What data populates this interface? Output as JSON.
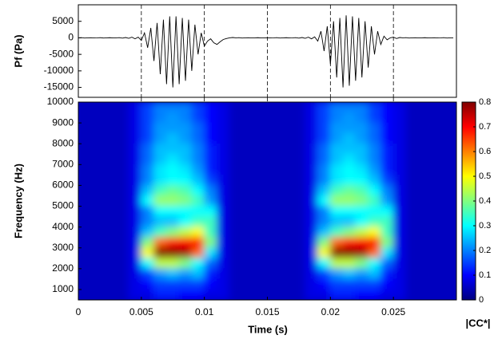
{
  "chart_data": [
    {
      "type": "line",
      "ylabel": "Pf (Pa)",
      "color": "#000000",
      "x": [
        0,
        0.00025,
        0.0005,
        0.00075,
        0.001,
        0.00125,
        0.0015,
        0.00175,
        0.002,
        0.00225,
        0.0025,
        0.00275,
        0.003,
        0.00325,
        0.0035,
        0.00375,
        0.004,
        0.00425,
        0.0045,
        0.00475,
        0.005,
        0.00525,
        0.0055,
        0.00575,
        0.006,
        0.00625,
        0.0065,
        0.00675,
        0.007,
        0.00725,
        0.0075,
        0.00775,
        0.008,
        0.00825,
        0.0085,
        0.00875,
        0.009,
        0.00925,
        0.0095,
        0.00975,
        0.01,
        0.01025,
        0.0105,
        0.01075,
        0.011,
        0.01125,
        0.0115,
        0.01175,
        0.012,
        0.01225,
        0.0125,
        0.01275,
        0.013,
        0.01325,
        0.0135,
        0.01375,
        0.014,
        0.01425,
        0.0145,
        0.01475,
        0.015,
        0.01525,
        0.0155,
        0.01575,
        0.016,
        0.01625,
        0.0165,
        0.01675,
        0.017,
        0.01725,
        0.0175,
        0.01775,
        0.018,
        0.01825,
        0.0185,
        0.01875,
        0.019,
        0.01925,
        0.0195,
        0.01975,
        0.02,
        0.02025,
        0.0205,
        0.02075,
        0.021,
        0.02125,
        0.0215,
        0.02175,
        0.022,
        0.02225,
        0.0225,
        0.02275,
        0.023,
        0.02325,
        0.0235,
        0.02375,
        0.024,
        0.02425,
        0.0245,
        0.02475,
        0.025,
        0.02525,
        0.0255,
        0.02575,
        0.026,
        0.02625,
        0.0265,
        0.02675,
        0.027,
        0.02725,
        0.0275,
        0.02775,
        0.028,
        0.02825,
        0.0285,
        0.02875,
        0.029,
        0.02925,
        0.0295,
        0.02975
      ],
      "values": [
        0,
        50,
        -50,
        0,
        30,
        -40,
        0,
        60,
        -60,
        0,
        40,
        -40,
        0,
        50,
        -80,
        100,
        -150,
        200,
        -300,
        200,
        -800,
        1500,
        -3000,
        3000,
        -7000,
        4500,
        -11000,
        5500,
        -14000,
        6500,
        -15000,
        6500,
        -14000,
        6000,
        -13000,
        5500,
        -10000,
        4000,
        -5000,
        1500,
        -2500,
        -1000,
        -300,
        -1500,
        -2000,
        -1200,
        -500,
        -200,
        0,
        100,
        0,
        50,
        -50,
        0,
        30,
        -30,
        0,
        40,
        -40,
        0,
        30,
        -30,
        0,
        50,
        -50,
        0,
        40,
        -40,
        0,
        60,
        -80,
        100,
        -150,
        200,
        -300,
        300,
        -1000,
        2000,
        -4000,
        3500,
        -8000,
        5000,
        -12000,
        6000,
        -15000,
        6800,
        -14500,
        6500,
        -13000,
        6000,
        -12000,
        5000,
        -9000,
        3500,
        -5000,
        2000,
        -2000,
        500,
        -600,
        0,
        200,
        -200,
        100,
        0,
        50,
        -50,
        0,
        30,
        -30,
        0,
        40,
        -40,
        0,
        30,
        -30,
        0,
        50,
        -50,
        0,
        0
      ],
      "xlim": [
        0,
        0.03
      ],
      "ylim": [
        -18000,
        10000
      ],
      "xticks": [
        0.005,
        0.01,
        0.015,
        0.02,
        0.025
      ],
      "yticks": [
        5000,
        0,
        -5000,
        -10000,
        -15000
      ],
      "grid": "dashed"
    },
    {
      "type": "heatmap",
      "xlabel": "Time (s)",
      "ylabel": "Frequency (Hz)",
      "colormap": "jet",
      "xlim": [
        0,
        0.03
      ],
      "ylim": [
        500,
        10000
      ],
      "xticks": [
        0,
        0.005,
        0.01,
        0.015,
        0.02,
        0.025
      ],
      "yticks": [
        1000,
        2000,
        3000,
        4000,
        5000,
        6000,
        7000,
        8000,
        9000,
        10000
      ],
      "x": [
        0.0005,
        0.0015,
        0.0025,
        0.0035,
        0.0045,
        0.0055,
        0.0065,
        0.0075,
        0.0085,
        0.0095,
        0.0105,
        0.0115,
        0.0125,
        0.0135,
        0.0145,
        0.0155,
        0.0165,
        0.0175,
        0.0185,
        0.0195,
        0.0205,
        0.0215,
        0.0225,
        0.0235,
        0.0245,
        0.0255,
        0.0265,
        0.0275,
        0.0285,
        0.0295
      ],
      "y": [
        9750,
        9250,
        8750,
        8250,
        7750,
        7250,
        6750,
        6250,
        5750,
        5250,
        4750,
        4250,
        3750,
        3250,
        2750,
        2250,
        1750,
        1250,
        750
      ],
      "z": [
        [
          0.05,
          0.05,
          0.05,
          0.05,
          0.08,
          0.15,
          0.2,
          0.2,
          0.2,
          0.15,
          0.1,
          0.08,
          0.05,
          0.05,
          0.05,
          0.05,
          0.05,
          0.05,
          0.08,
          0.15,
          0.2,
          0.2,
          0.2,
          0.15,
          0.1,
          0.08,
          0.05,
          0.05,
          0.05,
          0.05
        ],
        [
          0.05,
          0.05,
          0.05,
          0.05,
          0.08,
          0.15,
          0.2,
          0.22,
          0.2,
          0.15,
          0.1,
          0.08,
          0.05,
          0.05,
          0.05,
          0.05,
          0.05,
          0.05,
          0.08,
          0.15,
          0.2,
          0.22,
          0.2,
          0.15,
          0.1,
          0.08,
          0.05,
          0.05,
          0.05,
          0.05
        ],
        [
          0.05,
          0.05,
          0.05,
          0.05,
          0.08,
          0.15,
          0.22,
          0.22,
          0.22,
          0.18,
          0.1,
          0.08,
          0.05,
          0.05,
          0.05,
          0.05,
          0.05,
          0.05,
          0.08,
          0.15,
          0.22,
          0.22,
          0.22,
          0.18,
          0.1,
          0.08,
          0.05,
          0.05,
          0.05,
          0.05
        ],
        [
          0.05,
          0.05,
          0.05,
          0.05,
          0.08,
          0.15,
          0.22,
          0.25,
          0.22,
          0.18,
          0.1,
          0.08,
          0.05,
          0.05,
          0.05,
          0.05,
          0.05,
          0.05,
          0.08,
          0.15,
          0.22,
          0.25,
          0.22,
          0.18,
          0.1,
          0.08,
          0.05,
          0.05,
          0.05,
          0.05
        ],
        [
          0.05,
          0.05,
          0.05,
          0.05,
          0.08,
          0.18,
          0.25,
          0.25,
          0.25,
          0.2,
          0.12,
          0.08,
          0.05,
          0.05,
          0.05,
          0.05,
          0.05,
          0.05,
          0.08,
          0.18,
          0.25,
          0.25,
          0.25,
          0.2,
          0.12,
          0.08,
          0.05,
          0.05,
          0.05,
          0.05
        ],
        [
          0.05,
          0.05,
          0.05,
          0.05,
          0.08,
          0.18,
          0.25,
          0.28,
          0.25,
          0.2,
          0.12,
          0.08,
          0.05,
          0.05,
          0.05,
          0.05,
          0.05,
          0.05,
          0.08,
          0.18,
          0.25,
          0.28,
          0.25,
          0.2,
          0.12,
          0.08,
          0.05,
          0.05,
          0.05,
          0.05
        ],
        [
          0.05,
          0.05,
          0.05,
          0.05,
          0.08,
          0.2,
          0.28,
          0.3,
          0.28,
          0.22,
          0.12,
          0.08,
          0.05,
          0.05,
          0.05,
          0.05,
          0.05,
          0.05,
          0.08,
          0.2,
          0.28,
          0.3,
          0.28,
          0.22,
          0.12,
          0.08,
          0.05,
          0.05,
          0.05,
          0.05
        ],
        [
          0.05,
          0.05,
          0.05,
          0.05,
          0.08,
          0.2,
          0.28,
          0.3,
          0.3,
          0.25,
          0.15,
          0.08,
          0.05,
          0.05,
          0.05,
          0.05,
          0.05,
          0.05,
          0.08,
          0.2,
          0.28,
          0.3,
          0.3,
          0.25,
          0.15,
          0.08,
          0.05,
          0.05,
          0.05,
          0.05
        ],
        [
          0.05,
          0.05,
          0.05,
          0.05,
          0.08,
          0.25,
          0.35,
          0.38,
          0.36,
          0.3,
          0.2,
          0.08,
          0.05,
          0.05,
          0.05,
          0.05,
          0.05,
          0.05,
          0.08,
          0.25,
          0.35,
          0.38,
          0.36,
          0.3,
          0.2,
          0.08,
          0.05,
          0.05,
          0.05,
          0.05
        ],
        [
          0.05,
          0.05,
          0.05,
          0.05,
          0.08,
          0.3,
          0.42,
          0.42,
          0.4,
          0.35,
          0.22,
          0.08,
          0.05,
          0.05,
          0.05,
          0.05,
          0.05,
          0.05,
          0.08,
          0.3,
          0.42,
          0.42,
          0.4,
          0.35,
          0.22,
          0.08,
          0.05,
          0.05,
          0.05,
          0.05
        ],
        [
          0.05,
          0.05,
          0.05,
          0.05,
          0.08,
          0.2,
          0.3,
          0.3,
          0.3,
          0.3,
          0.3,
          0.08,
          0.05,
          0.05,
          0.05,
          0.05,
          0.05,
          0.05,
          0.08,
          0.2,
          0.3,
          0.3,
          0.3,
          0.3,
          0.3,
          0.08,
          0.05,
          0.05,
          0.05,
          0.05
        ],
        [
          0.05,
          0.05,
          0.05,
          0.05,
          0.08,
          0.2,
          0.25,
          0.25,
          0.3,
          0.35,
          0.35,
          0.08,
          0.05,
          0.05,
          0.05,
          0.05,
          0.05,
          0.05,
          0.08,
          0.2,
          0.25,
          0.25,
          0.3,
          0.35,
          0.35,
          0.08,
          0.05,
          0.05,
          0.05,
          0.05
        ],
        [
          0.05,
          0.05,
          0.05,
          0.05,
          0.08,
          0.25,
          0.35,
          0.4,
          0.45,
          0.5,
          0.35,
          0.08,
          0.05,
          0.05,
          0.05,
          0.05,
          0.05,
          0.05,
          0.08,
          0.25,
          0.35,
          0.4,
          0.45,
          0.5,
          0.35,
          0.08,
          0.05,
          0.05,
          0.05,
          0.05
        ],
        [
          0.05,
          0.05,
          0.05,
          0.05,
          0.08,
          0.4,
          0.62,
          0.68,
          0.7,
          0.7,
          0.4,
          0.08,
          0.05,
          0.05,
          0.05,
          0.05,
          0.05,
          0.05,
          0.08,
          0.4,
          0.62,
          0.68,
          0.7,
          0.7,
          0.4,
          0.08,
          0.05,
          0.05,
          0.05,
          0.05
        ],
        [
          0.05,
          0.05,
          0.05,
          0.05,
          0.08,
          0.5,
          0.8,
          0.8,
          0.78,
          0.62,
          0.28,
          0.08,
          0.05,
          0.05,
          0.05,
          0.05,
          0.05,
          0.05,
          0.08,
          0.5,
          0.8,
          0.8,
          0.78,
          0.62,
          0.28,
          0.08,
          0.05,
          0.05,
          0.05,
          0.05
        ],
        [
          0.05,
          0.05,
          0.05,
          0.05,
          0.08,
          0.3,
          0.45,
          0.45,
          0.4,
          0.3,
          0.18,
          0.08,
          0.05,
          0.05,
          0.05,
          0.05,
          0.05,
          0.05,
          0.08,
          0.3,
          0.45,
          0.45,
          0.4,
          0.3,
          0.18,
          0.08,
          0.05,
          0.05,
          0.05,
          0.05
        ],
        [
          0.05,
          0.05,
          0.05,
          0.05,
          0.08,
          0.15,
          0.22,
          0.25,
          0.22,
          0.25,
          0.12,
          0.08,
          0.05,
          0.05,
          0.05,
          0.05,
          0.05,
          0.05,
          0.08,
          0.15,
          0.22,
          0.25,
          0.22,
          0.25,
          0.12,
          0.08,
          0.05,
          0.05,
          0.05,
          0.05
        ],
        [
          0.05,
          0.05,
          0.05,
          0.05,
          0.08,
          0.1,
          0.15,
          0.15,
          0.15,
          0.15,
          0.1,
          0.08,
          0.05,
          0.05,
          0.05,
          0.05,
          0.05,
          0.05,
          0.08,
          0.1,
          0.15,
          0.15,
          0.15,
          0.15,
          0.1,
          0.08,
          0.05,
          0.05,
          0.05,
          0.05
        ],
        [
          0.05,
          0.05,
          0.05,
          0.05,
          0.08,
          0.08,
          0.12,
          0.12,
          0.1,
          0.1,
          0.08,
          0.08,
          0.05,
          0.05,
          0.05,
          0.05,
          0.05,
          0.05,
          0.08,
          0.08,
          0.12,
          0.12,
          0.1,
          0.1,
          0.08,
          0.08,
          0.05,
          0.05,
          0.05,
          0.05
        ]
      ],
      "colorbar": {
        "label": "|CC*|",
        "lim": [
          0,
          0.8
        ],
        "ticks": [
          0,
          0.1,
          0.2,
          0.3,
          0.4,
          0.5,
          0.6,
          0.7,
          0.8
        ]
      }
    }
  ]
}
